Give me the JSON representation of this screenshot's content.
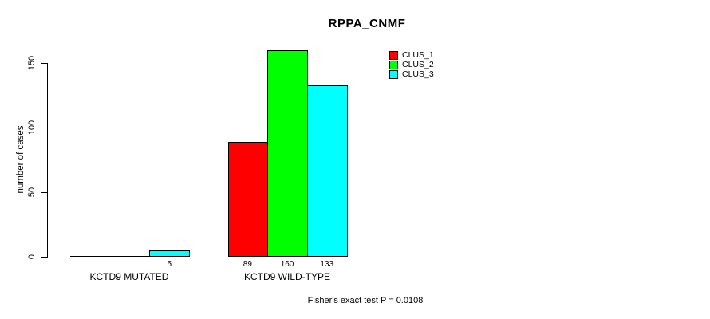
{
  "chart_data": {
    "type": "bar",
    "title": "RPPA_CNMF",
    "ylabel": "number of cases",
    "xlabel": "",
    "yticks": [
      0,
      50,
      100,
      150
    ],
    "ylim": [
      0,
      160
    ],
    "grid": false,
    "legend_position": "top-right",
    "series": [
      {
        "name": "CLUS_1",
        "color": "#ff0000"
      },
      {
        "name": "CLUS_2",
        "color": "#00ff00"
      },
      {
        "name": "CLUS_3",
        "color": "#00ffff"
      }
    ],
    "groups": [
      {
        "label": "KCTD9 MUTATED",
        "values": [
          0,
          0,
          5
        ],
        "bar_labels": [
          "",
          "",
          "5"
        ]
      },
      {
        "label": "KCTD9 WILD-TYPE",
        "values": [
          89,
          160,
          133
        ],
        "bar_labels": [
          "89",
          "160",
          "133"
        ]
      }
    ],
    "footnote": "Fisher's exact test P = 0.0108"
  }
}
